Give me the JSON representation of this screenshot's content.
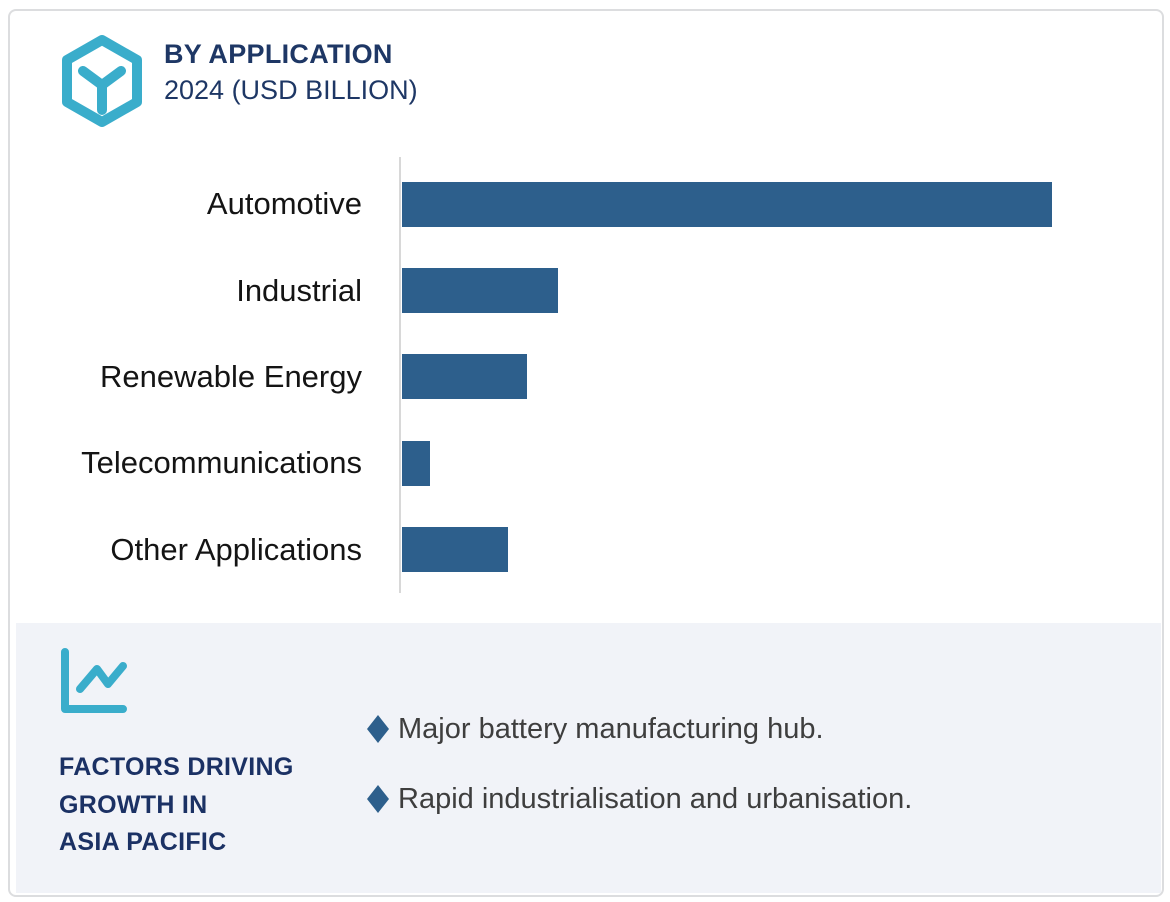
{
  "header": {
    "title": "BY APPLICATION",
    "subtitle": "2024 (USD BILLION)",
    "icon": "hexagon-cube-icon"
  },
  "chart_data": {
    "type": "bar",
    "orientation": "horizontal",
    "title": "BY APPLICATION",
    "subtitle": "2024 (USD BILLION)",
    "categories": [
      "Automotive",
      "Industrial",
      "Renewable Energy",
      "Telecommunications",
      "Other Applications"
    ],
    "values": [
      100,
      24,
      19.2,
      4.3,
      16.3
    ],
    "value_note": "No numeric axis ticks or data labels are shown in the figure; values are relative bar lengths as percent of the longest bar (Automotive = 100)",
    "xlim": [
      0,
      100
    ],
    "xlabel": "",
    "ylabel": "",
    "grid": false,
    "legend": false,
    "bar_color": "#2d5f8c",
    "axis_line_color": "#d8d8d8"
  },
  "factors": {
    "icon": "line-chart-icon",
    "heading_lines": [
      "FACTORS DRIVING",
      "GROWTH IN",
      "ASIA PACIFIC"
    ],
    "bullets": [
      "Major battery manufacturing hub.",
      "Rapid industrialisation and urbanisation."
    ],
    "bullet_icon": "diamond-bullet-icon"
  },
  "colors": {
    "teal_accent": "#3aadcb",
    "navy_text": "#1e3765",
    "factors_heading": "#1b3164",
    "bar_blue": "#2d5f8c",
    "panel_background": "#f1f3f8",
    "category_text": "#141414",
    "bullet_text": "#3e3e3e",
    "card_border": "#dcdddf",
    "axis_line": "#d8d8d8"
  }
}
